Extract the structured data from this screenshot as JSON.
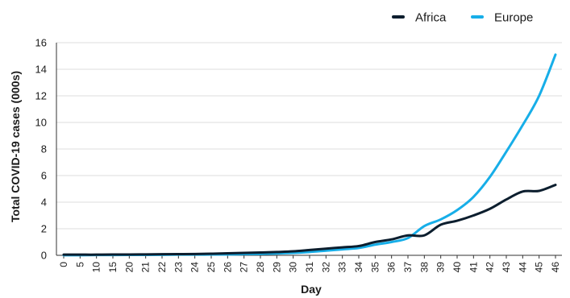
{
  "chart_data": {
    "type": "line",
    "xlabel": "Day",
    "ylabel": "Total COVID-19 cases (000s)",
    "categories": [
      "0",
      "5",
      "10",
      "15",
      "20",
      "21",
      "22",
      "23",
      "24",
      "25",
      "26",
      "27",
      "28",
      "29",
      "30",
      "31",
      "32",
      "33",
      "34",
      "35",
      "36",
      "37",
      "38",
      "39",
      "40",
      "41",
      "42",
      "43",
      "44",
      "45",
      "46"
    ],
    "ylim": [
      0,
      16
    ],
    "yticks": [
      0,
      2,
      4,
      6,
      8,
      10,
      12,
      14,
      16
    ],
    "grid": true,
    "legend_position": "top-right",
    "series": [
      {
        "name": "Africa",
        "color": "#0c1e2e",
        "values": [
          0.05,
          0.05,
          0.05,
          0.06,
          0.06,
          0.07,
          0.08,
          0.09,
          0.1,
          0.12,
          0.15,
          0.18,
          0.21,
          0.25,
          0.3,
          0.4,
          0.5,
          0.6,
          0.7,
          1.0,
          1.2,
          1.5,
          1.5,
          2.3,
          2.6,
          3.0,
          3.5,
          4.2,
          4.8,
          4.85,
          5.3
        ]
      },
      {
        "name": "Europe",
        "color": "#17aee8",
        "values": [
          0.01,
          0.01,
          0.02,
          0.02,
          0.03,
          0.03,
          0.04,
          0.05,
          0.05,
          0.06,
          0.07,
          0.09,
          0.11,
          0.14,
          0.18,
          0.25,
          0.35,
          0.45,
          0.55,
          0.8,
          1.0,
          1.3,
          2.2,
          2.7,
          3.4,
          4.4,
          5.9,
          7.8,
          9.8,
          12.0,
          15.1
        ]
      }
    ]
  }
}
